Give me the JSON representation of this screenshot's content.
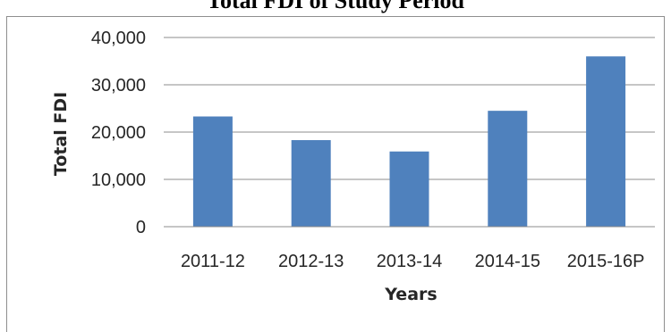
{
  "chart_data": {
    "type": "bar",
    "title": "Total FDI of Study Period",
    "xlabel": "Years",
    "ylabel": "Total FDI",
    "categories": [
      "2011-12",
      "2012-13",
      "2013-14",
      "2014-15",
      "2015-16P"
    ],
    "values": [
      23300,
      18300,
      15900,
      24500,
      36000
    ],
    "ylim": [
      0,
      40000
    ],
    "yticks": [
      "0",
      "10,000",
      "20,000",
      "30,000",
      "40,000"
    ],
    "grid": true,
    "legend": "none",
    "bar_color": "#4f81bd"
  }
}
